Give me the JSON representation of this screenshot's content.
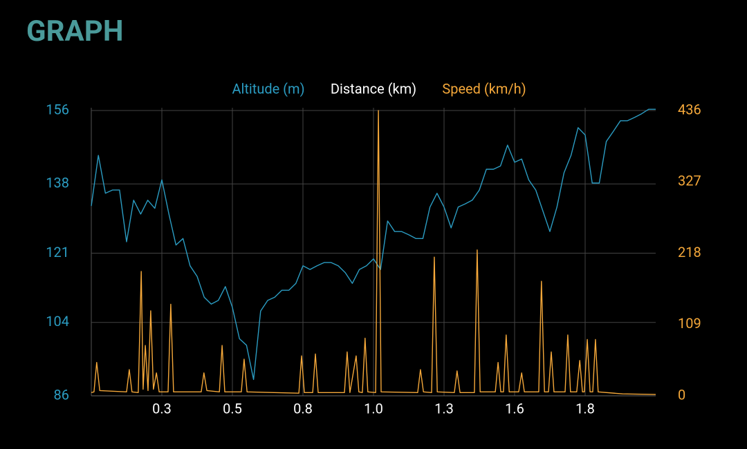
{
  "chart_data": {
    "type": "line",
    "title": "GRAPH",
    "xlabel": "Distance (km)",
    "xlim": [
      0,
      2.08
    ],
    "xticks": [
      {
        "value": 0.26,
        "label": "0.3"
      },
      {
        "value": 0.52,
        "label": "0.5"
      },
      {
        "value": 0.78,
        "label": "0.8"
      },
      {
        "value": 1.04,
        "label": "1.0"
      },
      {
        "value": 1.3,
        "label": "1.3"
      },
      {
        "value": 1.56,
        "label": "1.6"
      },
      {
        "value": 1.82,
        "label": "1.8"
      }
    ],
    "ylim": [
      86,
      156
    ],
    "yticks": [
      86,
      104,
      121,
      138,
      156
    ],
    "y2lim": [
      0,
      436
    ],
    "y2ticks": [
      0,
      109,
      218,
      327,
      436
    ],
    "grid": true,
    "series": [
      {
        "name": "Altitude (m)",
        "color": "#2b9cc2",
        "x": [
          0,
          0.026,
          0.052,
          0.078,
          0.104,
          0.13,
          0.156,
          0.182,
          0.208,
          0.234,
          0.26,
          0.286,
          0.312,
          0.338,
          0.364,
          0.39,
          0.416,
          0.442,
          0.468,
          0.494,
          0.52,
          0.546,
          0.572,
          0.598,
          0.624,
          0.65,
          0.676,
          0.702,
          0.728,
          0.754,
          0.78,
          0.806,
          0.832,
          0.858,
          0.884,
          0.91,
          0.936,
          0.962,
          0.988,
          1.014,
          1.04,
          1.066,
          1.092,
          1.118,
          1.144,
          1.17,
          1.196,
          1.222,
          1.248,
          1.274,
          1.3,
          1.326,
          1.352,
          1.378,
          1.404,
          1.43,
          1.456,
          1.482,
          1.508,
          1.534,
          1.56,
          1.586,
          1.612,
          1.638,
          1.664,
          1.69,
          1.716,
          1.742,
          1.768,
          1.794,
          1.82,
          1.846,
          1.872,
          1.898,
          1.924,
          1.95,
          1.976,
          2.002,
          2.028,
          2.054,
          2.08
        ],
        "values": [
          132.6,
          145,
          135.7,
          136.5,
          136.5,
          123.8,
          134,
          130.6,
          134,
          132,
          139,
          130.6,
          123,
          124.6,
          117.9,
          115.3,
          110.2,
          108.5,
          109.4,
          112.8,
          107.7,
          100,
          98.4,
          90,
          106.8,
          109.4,
          110.2,
          111.9,
          111.9,
          113.6,
          117.9,
          117,
          117.9,
          118.7,
          118.7,
          117.9,
          116.2,
          113.6,
          117,
          117.9,
          119.6,
          117,
          128.9,
          126.3,
          126.3,
          125.5,
          124.6,
          124.6,
          132.3,
          135.7,
          132.3,
          127.2,
          132.3,
          133.1,
          134,
          136.5,
          141.6,
          141.6,
          142.4,
          147.5,
          143.3,
          144.1,
          139,
          136.5,
          131.4,
          126.3,
          132.3,
          140.7,
          145,
          151.8,
          150,
          138.2,
          138.2,
          148.4,
          150.9,
          153.5,
          153.5,
          154.3,
          155.2,
          156.3,
          156.3
        ]
      },
      {
        "name": "Speed (km/h)",
        "color": "#f5a83a",
        "axis": "y2",
        "x": [
          0,
          0.01,
          0.02,
          0.031,
          0.13,
          0.14,
          0.15,
          0.173,
          0.184,
          0.191,
          0.199,
          0.209,
          0.219,
          0.229,
          0.24,
          0.25,
          0.283,
          0.293,
          0.303,
          0.405,
          0.415,
          0.426,
          0.472,
          0.482,
          0.492,
          0.553,
          0.563,
          0.574,
          0.765,
          0.775,
          0.785,
          0.816,
          0.826,
          0.836,
          0.933,
          0.943,
          0.953,
          0.976,
          0.986,
          0.999,
          1.009,
          1.019,
          1.048,
          1.058,
          1.068,
          1.203,
          1.213,
          1.224,
          1.254,
          1.264,
          1.275,
          1.338,
          1.348,
          1.359,
          1.412,
          1.422,
          1.433,
          1.489,
          1.499,
          1.509,
          1.519,
          1.529,
          1.54,
          1.575,
          1.586,
          1.596,
          1.649,
          1.659,
          1.67,
          1.685,
          1.695,
          1.705,
          1.746,
          1.756,
          1.766,
          1.789,
          1.8,
          1.81,
          1.817,
          1.828,
          1.838,
          1.848,
          1.858,
          1.868,
          1.958,
          2.08
        ],
        "values": [
          5,
          6,
          51,
          8,
          6,
          40,
          6,
          5,
          190,
          10,
          77,
          8,
          130,
          10,
          35,
          6,
          6,
          140,
          6,
          6,
          35,
          8,
          6,
          77,
          6,
          6,
          56,
          6,
          4,
          61,
          5,
          5,
          64,
          5,
          5,
          67,
          5,
          61,
          6,
          5,
          88,
          6,
          5,
          436,
          6,
          5,
          40,
          6,
          5,
          212,
          6,
          5,
          38,
          5,
          5,
          223,
          6,
          6,
          51,
          6,
          6,
          93,
          6,
          6,
          35,
          6,
          6,
          175,
          6,
          6,
          67,
          6,
          6,
          93,
          6,
          6,
          54,
          6,
          6,
          86,
          6,
          6,
          86,
          6,
          3,
          2
        ]
      }
    ]
  }
}
